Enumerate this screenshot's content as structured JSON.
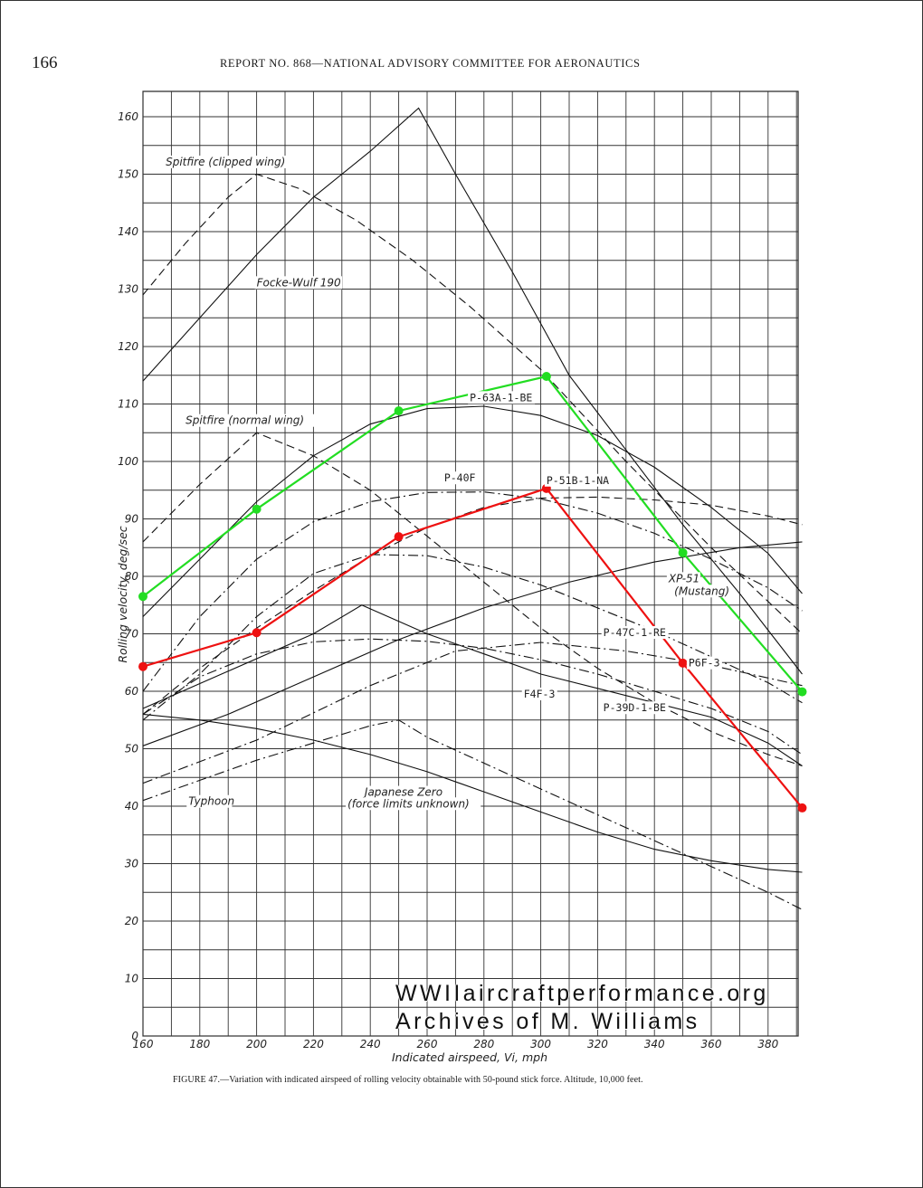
{
  "page": {
    "number": "166",
    "running_head": "REPORT NO. 868—NATIONAL ADVISORY COMMITTEE FOR AERONAUTICS",
    "caption": "FIGURE 47.—Variation with indicated airspeed of rolling velocity obtainable with 50-pound stick force. Altitude, 10,000 feet.",
    "watermark_line1": "WWIIaircraftperformance.org",
    "watermark_line2": "Archives of M. Williams"
  },
  "chart_data": {
    "type": "line",
    "title": "",
    "xlabel": "Indicated airspeed, Vi, mph",
    "ylabel": "Rolling velocity, deg/sec",
    "xlim": [
      160,
      392
    ],
    "ylim": [
      0,
      165
    ],
    "x_ticks": [
      160,
      180,
      200,
      220,
      240,
      260,
      280,
      300,
      320,
      340,
      360,
      380
    ],
    "y_ticks": [
      0,
      10,
      20,
      30,
      40,
      50,
      60,
      70,
      80,
      90,
      100,
      110,
      120,
      130,
      140,
      150,
      160
    ],
    "grid": true,
    "labels": [
      {
        "text": "Spitfire (clipped wing)",
        "x": 168,
        "y": 151.5,
        "style": "italic"
      },
      {
        "text": "Focke-Wulf 190",
        "x": 200,
        "y": 130.5,
        "style": "italic"
      },
      {
        "text": "Spitfire (normal wing)",
        "x": 175,
        "y": 106.5,
        "style": "italic"
      },
      {
        "text": "P-63A-1-BE",
        "x": 275,
        "y": 110.5,
        "style": "mono"
      },
      {
        "text": "P-40F",
        "x": 266,
        "y": 96.5,
        "style": "mono"
      },
      {
        "text": "P-51B-1-NA",
        "x": 302,
        "y": 96.1,
        "style": "mono"
      },
      {
        "text": "XP-51",
        "x": 345,
        "y": 79,
        "style": "italic"
      },
      {
        "text": "(Mustang)",
        "x": 347,
        "y": 76.8,
        "style": "italic"
      },
      {
        "text": "P-47C-1-RE",
        "x": 322,
        "y": 69.6,
        "style": "mono"
      },
      {
        "text": "P6F-3",
        "x": 352,
        "y": 64.3,
        "style": "mono"
      },
      {
        "text": "F4F-3",
        "x": 294,
        "y": 58.9,
        "style": "mono"
      },
      {
        "text": "P-39D-1-BE",
        "x": 322,
        "y": 56.5,
        "style": "mono"
      },
      {
        "text": "Typhoon",
        "x": 176,
        "y": 40.2,
        "style": "italic"
      },
      {
        "text": "Japanese Zero",
        "x": 238,
        "y": 41.8,
        "style": "italic"
      },
      {
        "text": "(force limits unknown)",
        "x": 232,
        "y": 39.8,
        "style": "italic"
      }
    ],
    "series": [
      {
        "name": "Spitfire (clipped wing)",
        "dash": "dash",
        "x": [
          160,
          175,
          190,
          200,
          215,
          235,
          255,
          275,
          300,
          330,
          360,
          392
        ],
        "y": [
          129,
          138,
          146,
          150,
          147.5,
          142,
          135,
          127,
          116,
          100,
          85,
          70
        ]
      },
      {
        "name": "Focke-Wulf 190",
        "dash": "solid",
        "x": [
          160,
          180,
          200,
          220,
          240,
          257,
          270,
          290,
          310,
          330,
          350,
          370,
          392
        ],
        "y": [
          114,
          125,
          136,
          146,
          154,
          161.5,
          150,
          133,
          115,
          102,
          89,
          77,
          63
        ]
      },
      {
        "name": "Spitfire (normal wing)",
        "dash": "dash",
        "x": [
          160,
          180,
          200,
          220,
          240,
          260,
          280,
          300,
          320,
          340,
          360,
          380,
          392
        ],
        "y": [
          86,
          96,
          105,
          101,
          95,
          87,
          79,
          71,
          64,
          58,
          53,
          49,
          47
        ]
      },
      {
        "name": "P-63A-1-BE",
        "dash": "solid",
        "x": [
          160,
          180,
          200,
          220,
          240,
          260,
          280,
          300,
          320,
          340,
          360,
          380,
          392
        ],
        "y": [
          73,
          83,
          93,
          101,
          106.5,
          109.2,
          109.6,
          108,
          104.5,
          99,
          92,
          84,
          77
        ]
      },
      {
        "name": "P-40F",
        "dash": "dashdot",
        "x": [
          160,
          180,
          200,
          220,
          240,
          260,
          280,
          300,
          320,
          340,
          360,
          380,
          392
        ],
        "y": [
          60,
          73,
          83,
          89.5,
          93,
          94.6,
          94.7,
          93.5,
          91,
          87.5,
          83,
          78,
          74
        ]
      },
      {
        "name": "P-51B-1-NA",
        "dash": "dash",
        "x": [
          160,
          180,
          200,
          220,
          240,
          260,
          280,
          300,
          320,
          340,
          360,
          380,
          392
        ],
        "y": [
          56,
          64,
          71,
          77.5,
          83.5,
          88.5,
          92,
          93.6,
          93.8,
          93.3,
          92.4,
          90.5,
          89
        ]
      },
      {
        "name": "XP-51 (Mustang)",
        "dash": "solid",
        "x": [
          160,
          190,
          220,
          250,
          280,
          310,
          340,
          370,
          392
        ],
        "y": [
          50.5,
          56,
          62.5,
          69,
          74.5,
          79,
          82.5,
          85,
          86
        ]
      },
      {
        "name": "P-47C-1-RE",
        "dash": "dashdot",
        "x": [
          160,
          180,
          200,
          220,
          240,
          260,
          280,
          300,
          320,
          340,
          360,
          380,
          392
        ],
        "y": [
          55,
          63,
          73,
          80.5,
          83.8,
          83.6,
          81.6,
          78.5,
          74.5,
          70.5,
          66,
          61.5,
          58
        ]
      },
      {
        "name": "P6F-3",
        "dash": "dashdot",
        "x": [
          160,
          200,
          240,
          270,
          300,
          330,
          360,
          392
        ],
        "y": [
          44,
          51.5,
          61,
          67,
          68.5,
          67,
          64.5,
          61
        ]
      },
      {
        "name": "F4F-3",
        "dash": "dashdot",
        "x": [
          160,
          180,
          200,
          220,
          240,
          260,
          280,
          300,
          320,
          340,
          360,
          380,
          392
        ],
        "y": [
          56,
          62.5,
          66.5,
          68.6,
          69.1,
          68.7,
          67.5,
          65.5,
          63,
          60,
          57,
          53,
          49
        ]
      },
      {
        "name": "P-39D-1-BE",
        "dash": "solid",
        "x": [
          160,
          190,
          220,
          237,
          260,
          280,
          300,
          320,
          340,
          360,
          380,
          392
        ],
        "y": [
          57,
          63.5,
          70,
          75,
          70,
          66.5,
          63,
          60.5,
          58,
          55.5,
          51,
          47
        ]
      },
      {
        "name": "Typhoon",
        "dash": "solid",
        "x": [
          160,
          180,
          200,
          220,
          240,
          260,
          280,
          300,
          320,
          340,
          360,
          380,
          392
        ],
        "y": [
          56,
          55,
          53.5,
          51.5,
          49,
          46,
          42.5,
          39,
          35.5,
          32.5,
          30.5,
          29,
          28.5
        ]
      },
      {
        "name": "Japanese Zero",
        "dash": "dashdot",
        "x": [
          160,
          180,
          200,
          220,
          240,
          250,
          260,
          280,
          300,
          320,
          340,
          360,
          380,
          392
        ],
        "y": [
          41,
          44.5,
          48,
          51,
          54,
          55,
          52,
          47.5,
          43,
          38.5,
          34,
          29.5,
          25,
          22
        ]
      },
      {
        "name": "",
        "color": "#22dd22",
        "markers": true,
        "x": [
          160,
          200,
          250,
          302,
          350,
          392
        ],
        "y": [
          76.5,
          91.7,
          108.8,
          114.8,
          84.1,
          59.9
        ]
      },
      {
        "name": "",
        "color": "#ee1111",
        "markers": true,
        "x": [
          160,
          200,
          250,
          302,
          350,
          392
        ],
        "y": [
          64.3,
          70.2,
          86.9,
          95.3,
          64.9,
          39.7
        ]
      }
    ]
  }
}
